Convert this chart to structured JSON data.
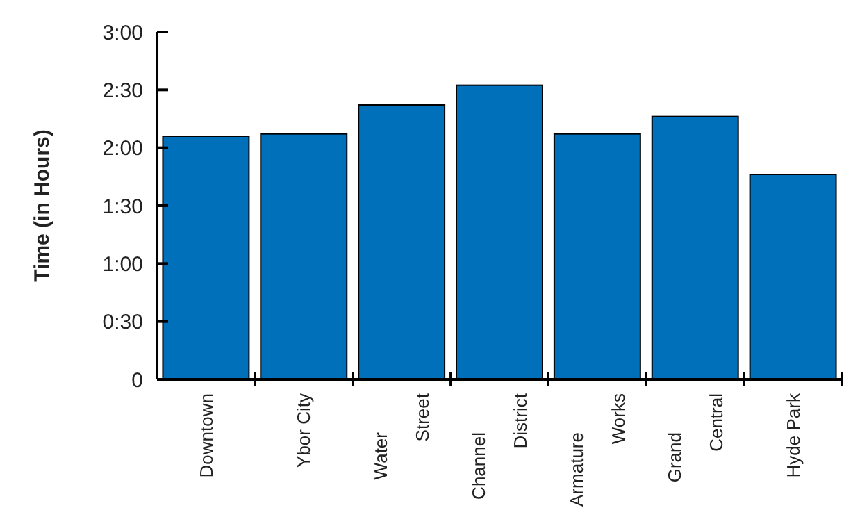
{
  "chart_data": {
    "type": "bar",
    "ylabel": "Time (in Hours)",
    "categories": [
      "Downtown",
      "Ybor City",
      "Water\nStreet",
      "Channel\nDistrict",
      "Armature\nWorks",
      "Grand\nCentral",
      "Hyde Park"
    ],
    "values": [
      2.1,
      2.12,
      2.37,
      2.54,
      2.12,
      2.27,
      1.77
    ],
    "color": "#0070ba",
    "ylim": [
      0,
      3
    ],
    "yticks": [
      0,
      {
        "value": 0.5,
        "label": "0:30"
      },
      {
        "value": 1,
        "label": "1:00"
      },
      {
        "value": 1.5,
        "label": "1:30"
      },
      {
        "value": 2,
        "label": "2:00"
      },
      {
        "value": 2.5,
        "label": "2:30"
      },
      {
        "value": 3,
        "label": "3:00"
      }
    ],
    "grid": false
  }
}
